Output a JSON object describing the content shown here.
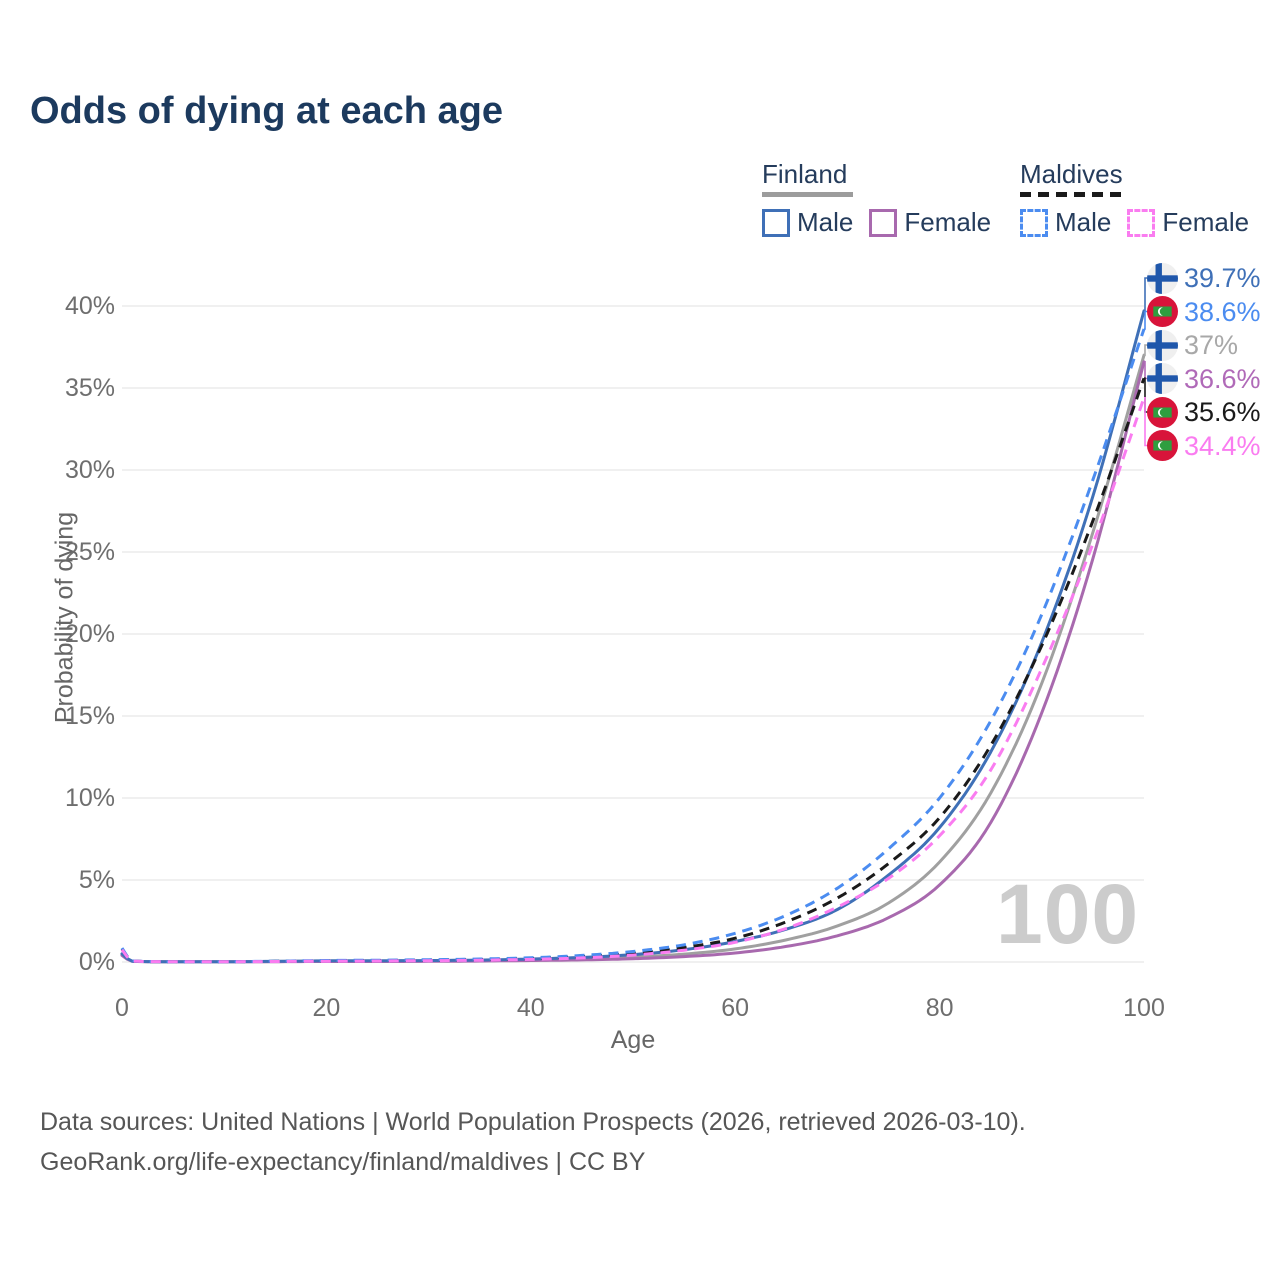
{
  "title": "Odds of dying at each age",
  "legend": {
    "groups": [
      {
        "name": "Finland",
        "line_style": "solid",
        "line_color": "#9c9c9c",
        "items": [
          {
            "label": "Male",
            "color": "#3f70b7",
            "dashed": false
          },
          {
            "label": "Female",
            "color": "#a869ae",
            "dashed": false
          }
        ]
      },
      {
        "name": "Maldives",
        "line_style": "dashed",
        "line_color": "#1a1a1a",
        "items": [
          {
            "label": "Male",
            "color": "#4b8cf0",
            "dashed": true
          },
          {
            "label": "Female",
            "color": "#fa7cf0",
            "dashed": true
          }
        ]
      }
    ]
  },
  "y_axis": {
    "label": "Probability of dying",
    "ticks": [
      {
        "value": 0,
        "label": "0%"
      },
      {
        "value": 5,
        "label": "5%"
      },
      {
        "value": 10,
        "label": "10%"
      },
      {
        "value": 15,
        "label": "15%"
      },
      {
        "value": 20,
        "label": "20%"
      },
      {
        "value": 25,
        "label": "25%"
      },
      {
        "value": 30,
        "label": "30%"
      },
      {
        "value": 35,
        "label": "35%"
      },
      {
        "value": 40,
        "label": "40%"
      }
    ]
  },
  "x_axis": {
    "label": "Age",
    "ticks": [
      {
        "value": 0,
        "label": "0"
      },
      {
        "value": 20,
        "label": "20"
      },
      {
        "value": 40,
        "label": "40"
      },
      {
        "value": 60,
        "label": "60"
      },
      {
        "value": 80,
        "label": "80"
      },
      {
        "value": 100,
        "label": "100"
      }
    ]
  },
  "watermark": "100",
  "end_labels": [
    {
      "text": "39.7%",
      "value": 39.7,
      "color": "#3f70b7",
      "flag": "finland"
    },
    {
      "text": "38.6%",
      "value": 38.6,
      "color": "#4b8cf0",
      "flag": "maldives"
    },
    {
      "text": "37%",
      "value": 37.0,
      "color": "#a8a8a8",
      "flag": "finland"
    },
    {
      "text": "36.6%",
      "value": 36.6,
      "color": "#b06ab8",
      "flag": "finland"
    },
    {
      "text": "35.6%",
      "value": 35.6,
      "color": "#1a1a1a",
      "flag": "maldives"
    },
    {
      "text": "34.4%",
      "value": 34.4,
      "color": "#fa7cf0",
      "flag": "maldives"
    }
  ],
  "footer": {
    "line1": "Data sources: United Nations | World Population Prospects (2026, retrieved 2026-03-10).",
    "line2": "GeoRank.org/life-expectancy/finland/maldives | CC BY"
  },
  "chart_data": {
    "type": "line",
    "title": "Odds of dying at each age",
    "xlabel": "Age",
    "ylabel": "Probability of dying",
    "xlim": [
      0,
      100
    ],
    "ylim": [
      0,
      42
    ],
    "y_unit": "percent",
    "grid": "horizontal",
    "legend_position": "top-right",
    "x": [
      0,
      1,
      5,
      10,
      15,
      20,
      25,
      30,
      35,
      40,
      45,
      50,
      55,
      60,
      65,
      70,
      75,
      80,
      85,
      90,
      95,
      100
    ],
    "series": [
      {
        "name": "Finland Male",
        "country": "Finland",
        "sex": "Male",
        "style": "solid",
        "color": "#3f70b7",
        "end_label": "39.7%",
        "values": [
          0.5,
          0.05,
          0.02,
          0.02,
          0.04,
          0.07,
          0.08,
          0.09,
          0.12,
          0.18,
          0.28,
          0.45,
          0.75,
          1.25,
          2.0,
          3.2,
          5.3,
          8.2,
          12.8,
          19.5,
          28.4,
          39.7
        ]
      },
      {
        "name": "Maldives Male",
        "country": "Maldives",
        "sex": "Male",
        "style": "dashed",
        "color": "#4b8cf0",
        "end_label": "38.6%",
        "values": [
          0.85,
          0.06,
          0.02,
          0.02,
          0.05,
          0.09,
          0.11,
          0.14,
          0.18,
          0.26,
          0.4,
          0.64,
          1.05,
          1.75,
          2.85,
          4.5,
          6.9,
          10.0,
          14.7,
          21.2,
          29.4,
          38.6
        ]
      },
      {
        "name": "Finland Both sexes",
        "country": "Finland",
        "sex": "Both",
        "style": "solid",
        "color": "#a0a0a0",
        "end_label": "37%",
        "values": [
          0.45,
          0.04,
          0.02,
          0.02,
          0.03,
          0.05,
          0.05,
          0.06,
          0.08,
          0.12,
          0.19,
          0.3,
          0.48,
          0.8,
          1.35,
          2.2,
          3.6,
          6.1,
          10.3,
          17.0,
          26.2,
          37.0
        ]
      },
      {
        "name": "Finland Female",
        "country": "Finland",
        "sex": "Female",
        "style": "solid",
        "color": "#a869ae",
        "end_label": "36.6%",
        "values": [
          0.4,
          0.04,
          0.01,
          0.01,
          0.02,
          0.03,
          0.03,
          0.04,
          0.06,
          0.09,
          0.13,
          0.2,
          0.33,
          0.55,
          0.95,
          1.6,
          2.7,
          4.7,
          8.5,
          15.2,
          24.6,
          36.6
        ]
      },
      {
        "name": "Maldives Both sexes",
        "country": "Maldives",
        "sex": "Both",
        "style": "dashed",
        "color": "#1a1a1a",
        "end_label": "35.6%",
        "values": [
          0.8,
          0.05,
          0.02,
          0.02,
          0.04,
          0.07,
          0.09,
          0.11,
          0.15,
          0.21,
          0.33,
          0.53,
          0.88,
          1.45,
          2.45,
          3.9,
          6.0,
          8.8,
          13.2,
          19.3,
          26.9,
          35.6
        ]
      },
      {
        "name": "Maldives Female",
        "country": "Maldives",
        "sex": "Female",
        "style": "dashed",
        "color": "#fa7cf0",
        "end_label": "34.4%",
        "values": [
          0.75,
          0.05,
          0.02,
          0.02,
          0.03,
          0.05,
          0.06,
          0.08,
          0.11,
          0.16,
          0.25,
          0.42,
          0.72,
          1.2,
          2.05,
          3.35,
          5.1,
          7.7,
          11.7,
          17.9,
          25.5,
          34.4
        ]
      }
    ]
  }
}
